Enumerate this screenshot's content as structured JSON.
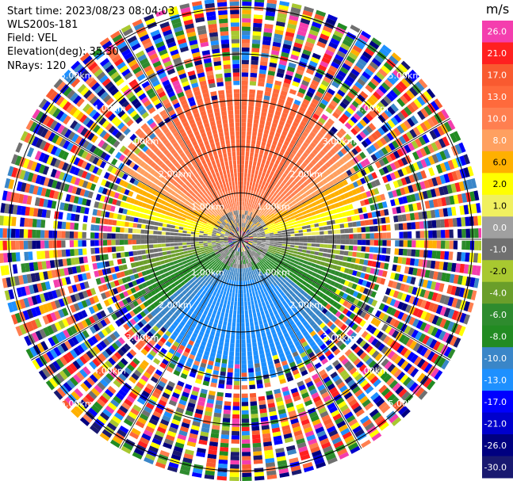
{
  "info": {
    "start_time": "Start time: 2023/08/23 08:04:03",
    "instrument": "WLS200s-181",
    "field": "Field: VEL",
    "elevation": "Elevation(deg): 35.30",
    "nrays": "NRays: 120"
  },
  "chart_data": {
    "type": "ppi",
    "field": "VEL",
    "nrays": 120,
    "range_rings_km": [
      1.0,
      2.0,
      3.0,
      4.0,
      5.0
    ],
    "range_labels": [
      "1.00km",
      "2.00km",
      "3.00km",
      "4.00km",
      "5.00km"
    ],
    "colorbar": {
      "unit": "m/s",
      "ticks": [
        "26.0",
        "21.0",
        "17.0",
        "13.0",
        "10.0",
        "8.0",
        "6.0",
        "2.0",
        "1.0",
        "0.0",
        "-1.0",
        "-2.0",
        "-4.0",
        "-6.0",
        "-8.0",
        "-10.0",
        "-13.0",
        "-17.0",
        "-21.0",
        "-26.0",
        "-30.0"
      ],
      "colors": [
        "#f43eae",
        "#ff2020",
        "#f95a30",
        "#ff6a3c",
        "#ff7f50",
        "#ffa060",
        "#ffb000",
        "#ffff00",
        "#f0f060",
        "#a0a0a0",
        "#707070",
        "#a8c830",
        "#6a9e2a",
        "#2e8b2e",
        "#228b22",
        "#3a86c8",
        "#1e90ff",
        "#0000ff",
        "#0000cd",
        "#000080",
        "#191970"
      ]
    }
  }
}
